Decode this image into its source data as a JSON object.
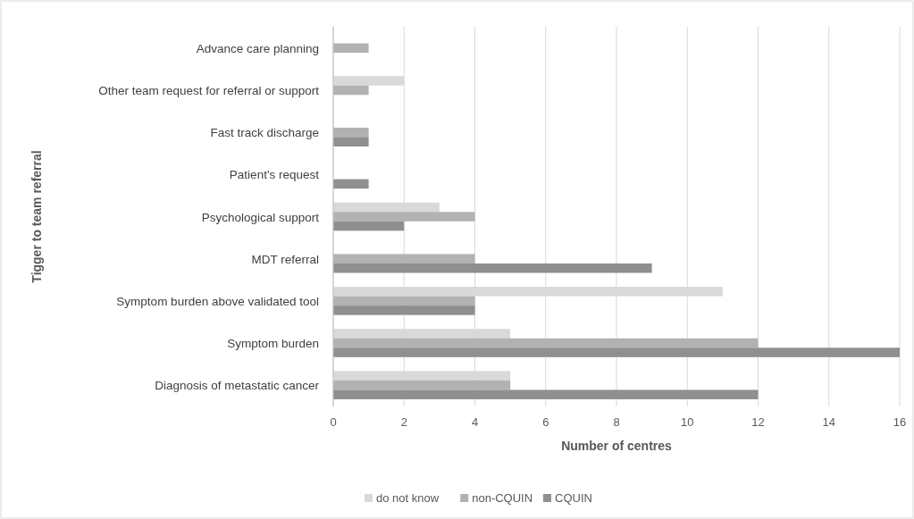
{
  "chart_data": {
    "type": "bar",
    "orientation": "horizontal",
    "xlabel": "Number of centres",
    "ylabel": "Tigger to team referral",
    "categories": [
      "Advance care planning",
      "Other team request for referral or support",
      "Fast track discharge",
      "Patient's request",
      "Psychological support",
      "MDT referral",
      "Symptom burden above validated tool",
      "Symptom burden",
      "Diagnosis of metastatic cancer"
    ],
    "series": [
      {
        "name": "do not know",
        "color": "#d9d9d9",
        "values": [
          null,
          2,
          null,
          null,
          3,
          null,
          11,
          5,
          5
        ]
      },
      {
        "name": "non-CQUIN",
        "color": "#b2b2b2",
        "values": [
          1,
          1,
          1,
          null,
          4,
          4,
          4,
          12,
          5
        ]
      },
      {
        "name": "CQUIN",
        "color": "#8f8f8f",
        "values": [
          null,
          null,
          1,
          1,
          2,
          9,
          4,
          16,
          12
        ]
      }
    ],
    "xlim": [
      0,
      16
    ],
    "xticks": [
      0,
      2,
      4,
      6,
      8,
      10,
      12,
      14,
      16
    ],
    "grid": "x",
    "legend": "bottom"
  }
}
